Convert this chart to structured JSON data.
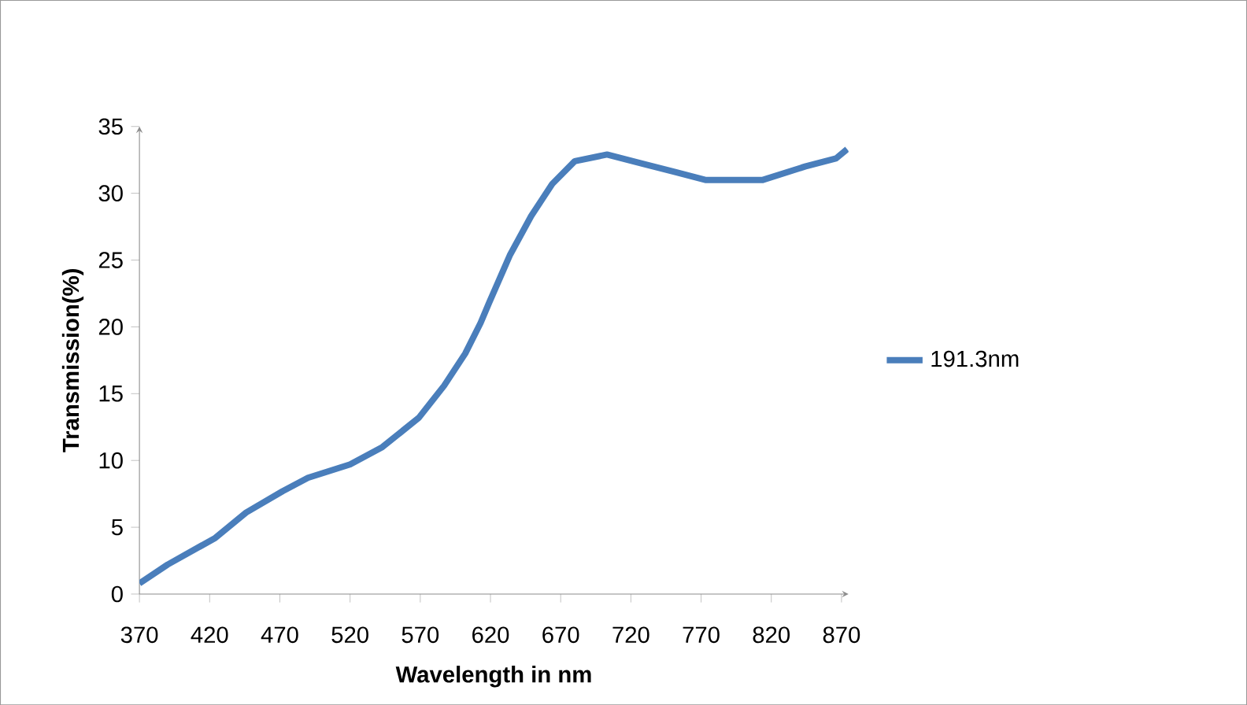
{
  "chart_data": {
    "type": "line",
    "xlabel": "Wavelength in nm",
    "ylabel": "Transmission(%)",
    "xlim": [
      370,
      875
    ],
    "xticks": [
      370,
      420,
      470,
      520,
      570,
      620,
      670,
      720,
      770,
      820,
      870
    ],
    "ylim": [
      0,
      35
    ],
    "yticks": [
      0,
      5,
      10,
      15,
      20,
      25,
      30,
      35
    ],
    "grid": false,
    "legend": "right",
    "series": [
      {
        "name": "191.3nm",
        "color": "#4a7ebb",
        "x": [
          370,
          390,
          424,
          446,
          472,
          490,
          520,
          543,
          569,
          587,
          602,
          613,
          619,
          634,
          649,
          664,
          680,
          703,
          729,
          751,
          773,
          814,
          844,
          866,
          874
        ],
        "values": [
          0.8,
          2.2,
          4.2,
          6.1,
          7.7,
          8.7,
          9.7,
          11.0,
          13.2,
          15.6,
          18.0,
          20.3,
          21.8,
          25.4,
          28.3,
          30.7,
          32.4,
          32.9,
          32.2,
          31.6,
          31.0,
          31.0,
          32.0,
          32.6,
          33.3
        ]
      }
    ]
  }
}
